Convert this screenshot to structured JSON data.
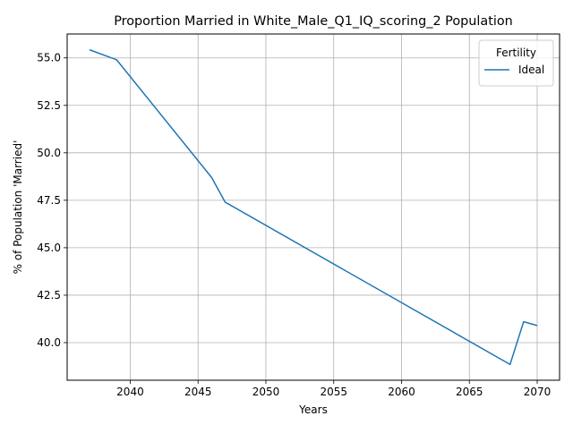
{
  "chart_data": {
    "type": "line",
    "title": "Proportion Married in White_Male_Q1_IQ_scoring_2 Population",
    "xlabel": "Years",
    "ylabel": "% of Population 'Married'",
    "xlim": [
      2035.35,
      2071.65
    ],
    "ylim": [
      38.02,
      56.26
    ],
    "xticks": [
      2040,
      2045,
      2050,
      2055,
      2060,
      2065,
      2070
    ],
    "yticks": [
      40.0,
      42.5,
      45.0,
      47.5,
      50.0,
      52.5,
      55.0
    ],
    "xtick_labels": [
      "2040",
      "2045",
      "2050",
      "2055",
      "2060",
      "2065",
      "2070"
    ],
    "ytick_labels": [
      "40.0",
      "42.5",
      "45.0",
      "47.5",
      "50.0",
      "52.5",
      "55.0"
    ],
    "grid": true,
    "legend": {
      "title": "Fertility",
      "position": "top-right"
    },
    "series": [
      {
        "name": "Ideal",
        "color": "#1f77b4",
        "x": [
          2037,
          2039,
          2046,
          2047,
          2068,
          2069,
          2070
        ],
        "y": [
          55.43,
          54.9,
          48.7,
          47.4,
          38.85,
          41.1,
          40.9
        ]
      }
    ]
  }
}
